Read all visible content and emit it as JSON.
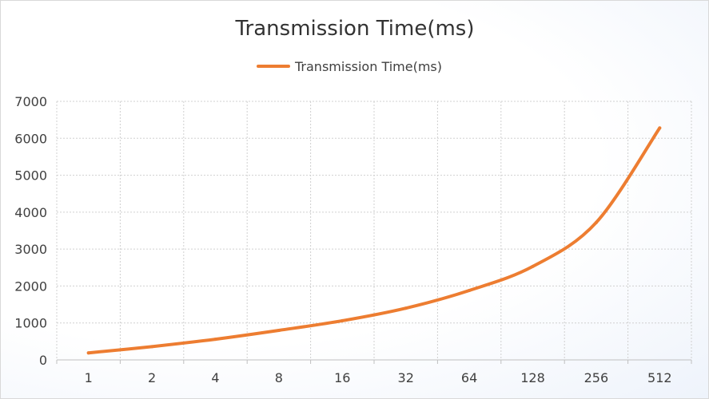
{
  "chart_data": {
    "type": "line",
    "title": "Transmission Time(ms)",
    "xlabel": "",
    "ylabel": "",
    "categories": [
      "1",
      "2",
      "4",
      "8",
      "16",
      "32",
      "64",
      "128",
      "256",
      "512"
    ],
    "series": [
      {
        "name": "Transmission Time(ms)",
        "values": [
          190,
          360,
          560,
          800,
          1060,
          1400,
          1880,
          2530,
          3720,
          6280
        ],
        "color": "#ED7D31"
      }
    ],
    "ylim": [
      0,
      7000
    ],
    "yticks": [
      "0",
      "1000",
      "2000",
      "3000",
      "4000",
      "5000",
      "6000",
      "7000"
    ],
    "grid": true,
    "legend": "top-center"
  }
}
